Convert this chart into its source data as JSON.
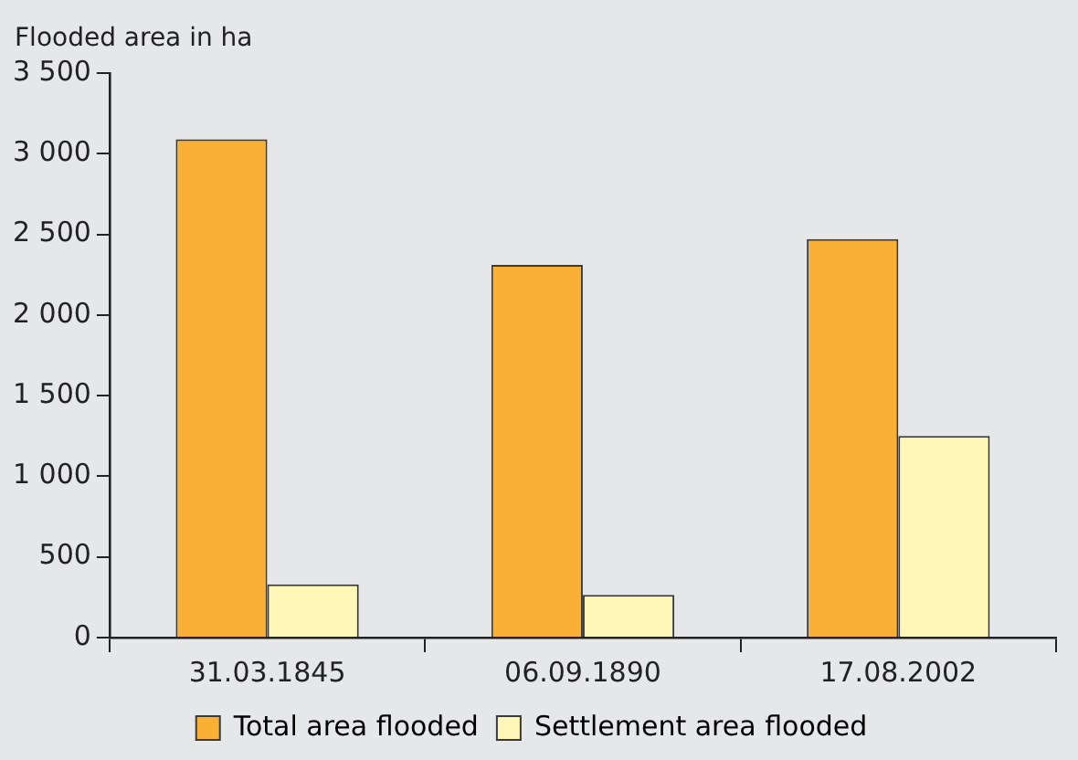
{
  "chart_data": {
    "type": "bar",
    "ylabel": "Flooded area in ha",
    "categories": [
      "31.03.1845",
      "06.09.1890",
      "17.08.2002"
    ],
    "series": [
      {
        "name": "Total area flooded",
        "color": "#f9b035",
        "values": [
          3090,
          2310,
          2470
        ]
      },
      {
        "name": "Settlement area flooded",
        "color": "#fef7b8",
        "values": [
          330,
          265,
          1250
        ]
      }
    ],
    "ylim": [
      0,
      3500
    ],
    "yticks": [
      {
        "value": 0,
        "label": "0"
      },
      {
        "value": 500,
        "label": "500"
      },
      {
        "value": 1000,
        "label": "1 000"
      },
      {
        "value": 1500,
        "label": "1 500"
      },
      {
        "value": 2000,
        "label": "2 000"
      },
      {
        "value": 2500,
        "label": "2 500"
      },
      {
        "value": 3000,
        "label": "3 000"
      },
      {
        "value": 3500,
        "label": "3 500"
      }
    ],
    "grid": false,
    "legend": "bottom"
  }
}
